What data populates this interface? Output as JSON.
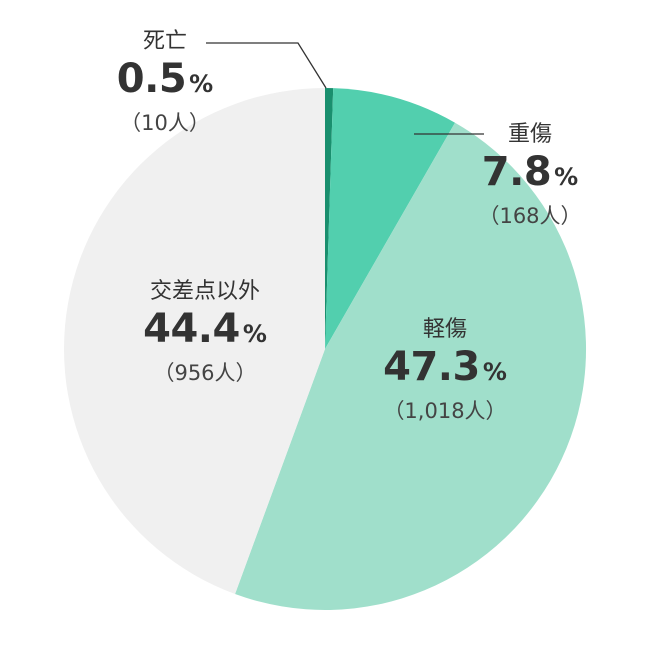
{
  "chart_data": {
    "type": "pie",
    "start_angle_deg": 0,
    "direction": "clockwise",
    "slices": [
      {
        "name": "死亡",
        "percent": 0.5,
        "count": "（10人）",
        "color": "#1a8f6e"
      },
      {
        "name": "重傷",
        "percent": 7.8,
        "count": "（168人）",
        "color": "#52cfae"
      },
      {
        "name": "軽傷",
        "percent": 47.3,
        "count": "（1,018人）",
        "color": "#a0dfcb"
      },
      {
        "name": "交差点以外",
        "percent": 44.4,
        "count": "（956人）",
        "color": "#f0f0f0"
      }
    ],
    "percent_unit": "%"
  }
}
